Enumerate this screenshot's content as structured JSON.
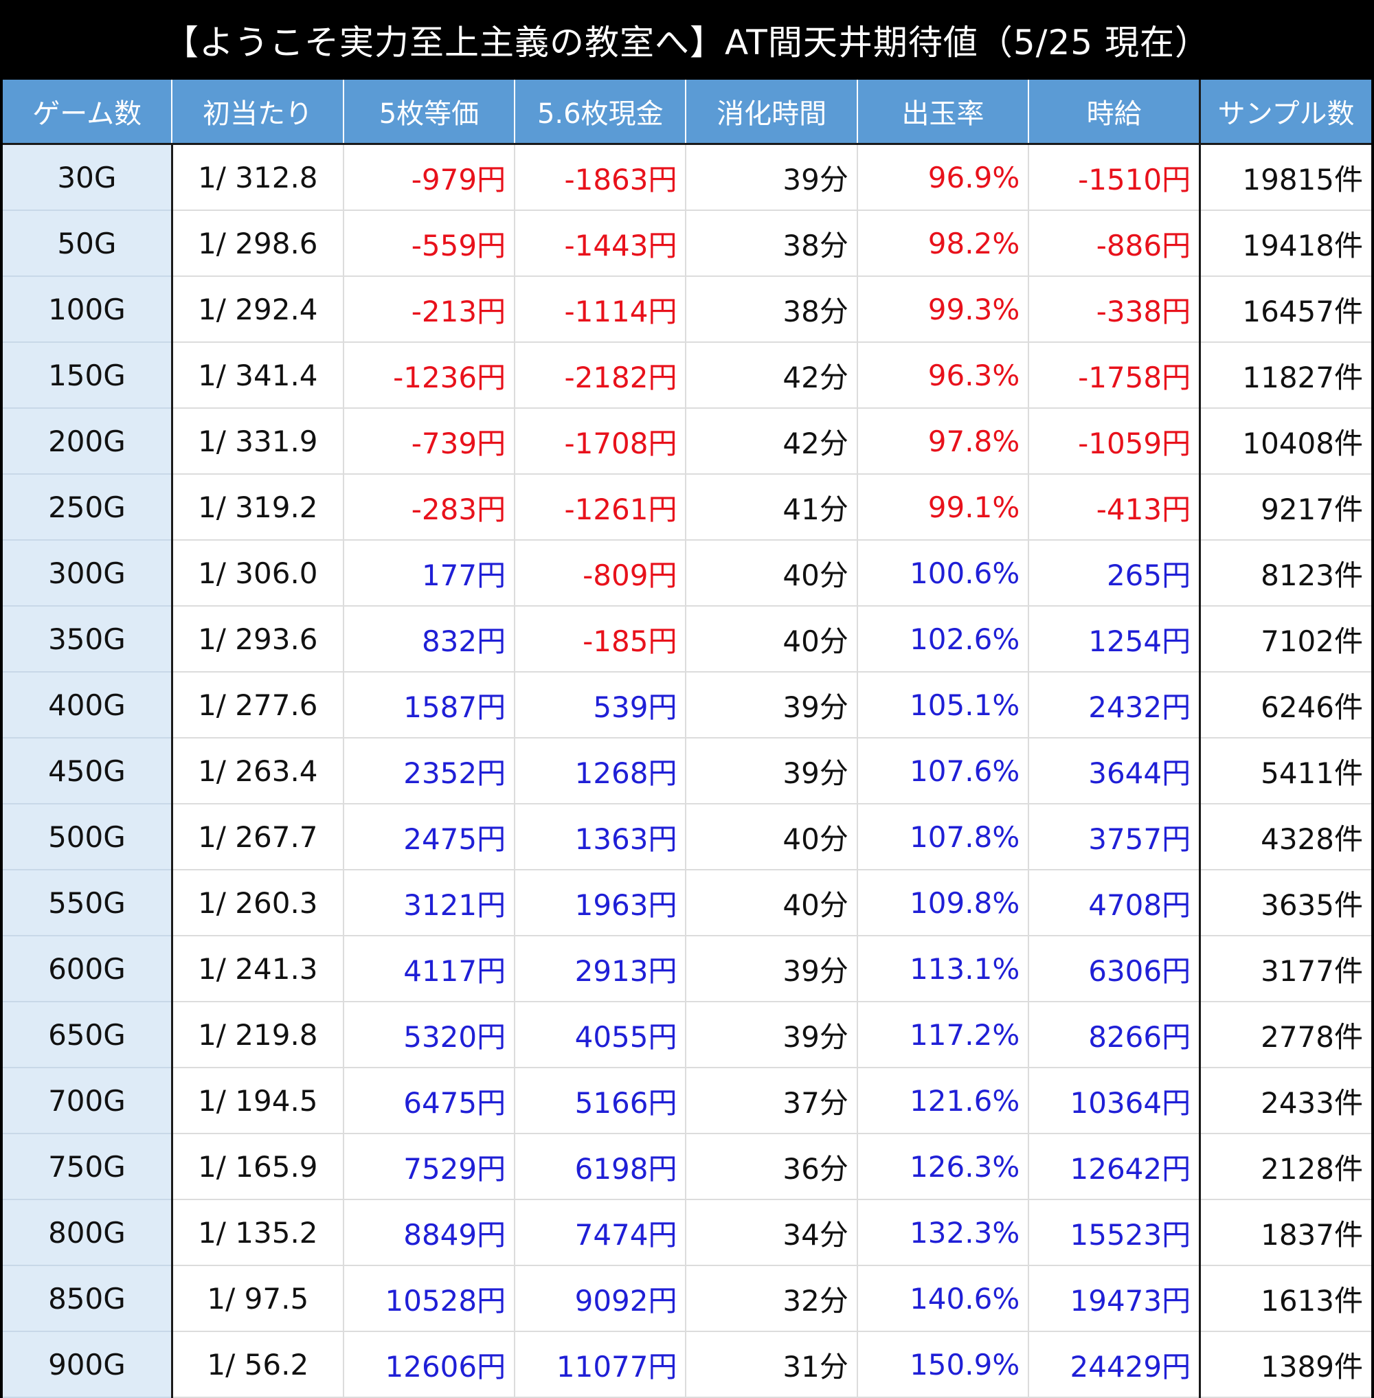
{
  "title": "【ようこそ実力至上主義の教室へ】AT間天井期待値（5/25 現在）",
  "headers": [
    "ゲーム数",
    "初当たり",
    "5枚等価",
    "5.6枚現金",
    "消化時間",
    "出玉率",
    "時給",
    "サンプル数"
  ],
  "colors": {
    "header_bg": "#5b9bd5",
    "game_col_bg": "#deebf7",
    "positive": "#1f1fd6",
    "negative": "#e8111b"
  },
  "rows": [
    [
      "30G",
      "1/ 312.8",
      "-979円",
      "-1863円",
      "39分",
      "96.9%",
      "-1510円",
      "19815件"
    ],
    [
      "50G",
      "1/ 298.6",
      "-559円",
      "-1443円",
      "38分",
      "98.2%",
      "-886円",
      "19418件"
    ],
    [
      "100G",
      "1/ 292.4",
      "-213円",
      "-1114円",
      "38分",
      "99.3%",
      "-338円",
      "16457件"
    ],
    [
      "150G",
      "1/ 341.4",
      "-1236円",
      "-2182円",
      "42分",
      "96.3%",
      "-1758円",
      "11827件"
    ],
    [
      "200G",
      "1/ 331.9",
      "-739円",
      "-1708円",
      "42分",
      "97.8%",
      "-1059円",
      "10408件"
    ],
    [
      "250G",
      "1/ 319.2",
      "-283円",
      "-1261円",
      "41分",
      "99.1%",
      "-413円",
      "9217件"
    ],
    [
      "300G",
      "1/ 306.0",
      "177円",
      "-809円",
      "40分",
      "100.6%",
      "265円",
      "8123件"
    ],
    [
      "350G",
      "1/ 293.6",
      "832円",
      "-185円",
      "40分",
      "102.6%",
      "1254円",
      "7102件"
    ],
    [
      "400G",
      "1/ 277.6",
      "1587円",
      "539円",
      "39分",
      "105.1%",
      "2432円",
      "6246件"
    ],
    [
      "450G",
      "1/ 263.4",
      "2352円",
      "1268円",
      "39分",
      "107.6%",
      "3644円",
      "5411件"
    ],
    [
      "500G",
      "1/ 267.7",
      "2475円",
      "1363円",
      "40分",
      "107.8%",
      "3757円",
      "4328件"
    ],
    [
      "550G",
      "1/ 260.3",
      "3121円",
      "1963円",
      "40分",
      "109.8%",
      "4708円",
      "3635件"
    ],
    [
      "600G",
      "1/ 241.3",
      "4117円",
      "2913円",
      "39分",
      "113.1%",
      "6306円",
      "3177件"
    ],
    [
      "650G",
      "1/ 219.8",
      "5320円",
      "4055円",
      "39分",
      "117.2%",
      "8266円",
      "2778件"
    ],
    [
      "700G",
      "1/ 194.5",
      "6475円",
      "5166円",
      "37分",
      "121.6%",
      "10364円",
      "2433件"
    ],
    [
      "750G",
      "1/ 165.9",
      "7529円",
      "6198円",
      "36分",
      "126.3%",
      "12642円",
      "2128件"
    ],
    [
      "800G",
      "1/ 135.2",
      "8849円",
      "7474円",
      "34分",
      "132.3%",
      "15523円",
      "1837件"
    ],
    [
      "850G",
      "1/ 97.5",
      "10528円",
      "9092円",
      "32分",
      "140.6%",
      "19473円",
      "1613件"
    ],
    [
      "900G",
      "1/ 56.2",
      "12606円",
      "11077円",
      "31分",
      "150.9%",
      "24429円",
      "1389件"
    ]
  ]
}
